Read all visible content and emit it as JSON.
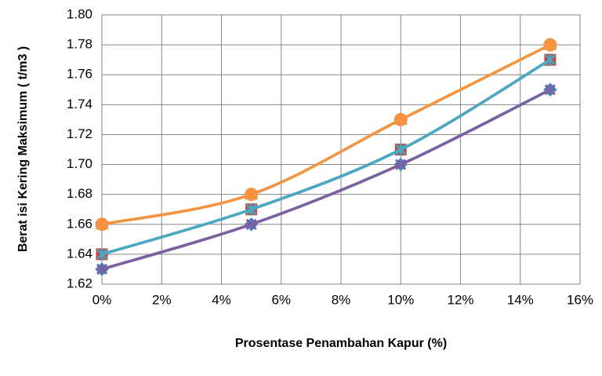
{
  "chart_data": {
    "type": "line",
    "x_label": "Prosentase Penambahan Kapur (%)",
    "y_label": "Berat isi Kering Maksimum ( t/m3 )",
    "x": [
      0,
      5,
      10,
      15
    ],
    "series": [
      {
        "color": "#4a7ebb",
        "marker": "diamond",
        "values": [
          1.63,
          1.66,
          1.7,
          1.75
        ]
      },
      {
        "color": "#be4b48",
        "marker": "square",
        "values": [
          1.64,
          1.67,
          1.71,
          1.77
        ]
      },
      {
        "color": "#98b954",
        "marker": "triangle",
        "values": [
          1.66,
          1.68,
          1.73,
          1.78
        ]
      },
      {
        "color": "#7d60a0",
        "marker": "x",
        "values": [
          1.63,
          1.66,
          1.7,
          1.75
        ]
      },
      {
        "color": "#46aac5",
        "marker": "star",
        "values": [
          1.64,
          1.67,
          1.71,
          1.77
        ]
      },
      {
        "color": "#f69240",
        "marker": "circle",
        "values": [
          1.66,
          1.68,
          1.73,
          1.78
        ]
      }
    ],
    "xlim": [
      0,
      16
    ],
    "xticks": [
      {
        "value": 0,
        "label": "0%"
      },
      {
        "value": 2,
        "label": "2%"
      },
      {
        "value": 4,
        "label": "4%"
      },
      {
        "value": 6,
        "label": "6%"
      },
      {
        "value": 8,
        "label": "8%"
      },
      {
        "value": 10,
        "label": "10%"
      },
      {
        "value": 12,
        "label": "12%"
      },
      {
        "value": 14,
        "label": "14%"
      },
      {
        "value": 16,
        "label": "16%"
      }
    ],
    "ylim": [
      1.62,
      1.8
    ],
    "yticks": [
      1.62,
      1.64,
      1.66,
      1.68,
      {
        "value": 1.7,
        "label": "1.70"
      },
      1.72,
      1.74,
      1.76,
      1.78,
      {
        "value": 1.8,
        "label": "1.80"
      }
    ],
    "grid": true,
    "smooth": true
  }
}
